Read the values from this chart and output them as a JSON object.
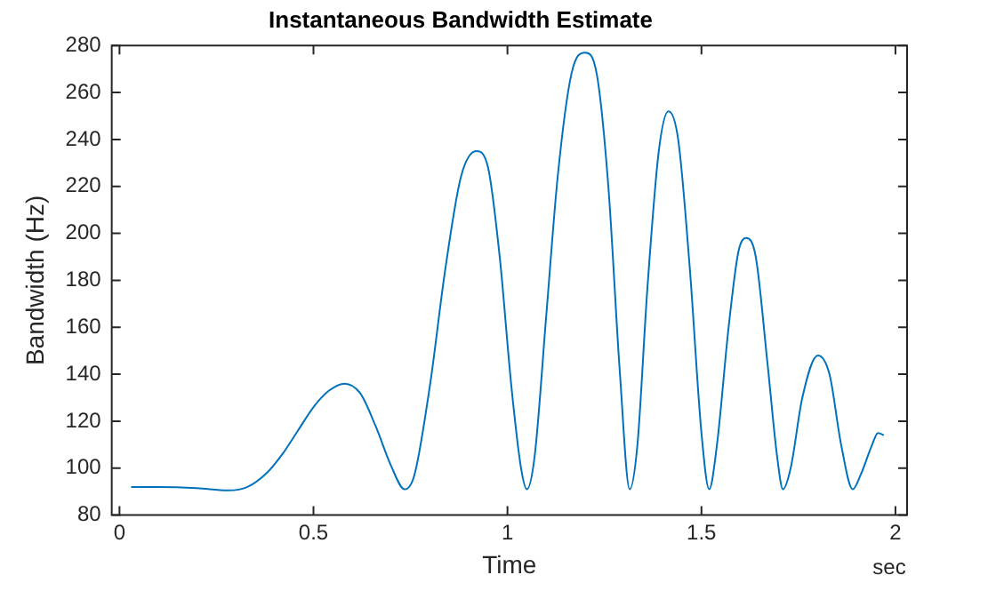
{
  "chart_data": {
    "type": "line",
    "title": "Instantaneous Bandwidth Estimate",
    "xlabel": "Time",
    "ylabel": "Bandwidth (Hz)",
    "annotations": [
      "sec"
    ],
    "xlim": [
      -0.02,
      2.03
    ],
    "xticks": [
      0,
      0.5,
      1,
      1.5,
      2
    ],
    "ylim": [
      80,
      280
    ],
    "yticks": [
      80,
      100,
      120,
      140,
      160,
      180,
      200,
      220,
      240,
      260,
      280
    ],
    "series": [
      {
        "color": "#0072bd",
        "x": [
          0.03,
          0.1,
          0.2,
          0.28,
          0.33,
          0.38,
          0.42,
          0.46,
          0.5,
          0.54,
          0.58,
          0.62,
          0.66,
          0.7,
          0.735,
          0.76,
          0.8,
          0.84,
          0.88,
          0.92,
          0.95,
          0.98,
          1.01,
          1.035,
          1.05,
          1.07,
          1.1,
          1.13,
          1.165,
          1.2,
          1.23,
          1.26,
          1.29,
          1.315,
          1.335,
          1.36,
          1.39,
          1.415,
          1.44,
          1.47,
          1.5,
          1.52,
          1.54,
          1.57,
          1.595,
          1.615,
          1.64,
          1.67,
          1.695,
          1.71,
          1.73,
          1.76,
          1.8,
          1.83,
          1.86,
          1.89,
          1.91,
          1.94,
          1.955,
          1.97
        ],
        "values": [
          92,
          92,
          91.5,
          90.5,
          92,
          98,
          106,
          116,
          126,
          133,
          136,
          132,
          118,
          101,
          91,
          97,
          135,
          185,
          224,
          235,
          228,
          190,
          135,
          100,
          91,
          105,
          165,
          225,
          268,
          277,
          268,
          220,
          140,
          91,
          110,
          175,
          235,
          252,
          240,
          185,
          115,
          91,
          110,
          160,
          192,
          198,
          190,
          145,
          105,
          91,
          100,
          130,
          148,
          140,
          110,
          91,
          97,
          110,
          115,
          114
        ]
      }
    ],
    "line_style": "solid",
    "marker": "none"
  }
}
